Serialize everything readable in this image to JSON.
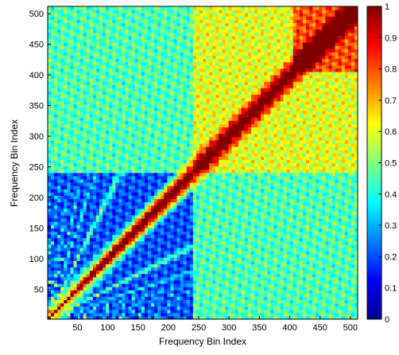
{
  "chart_data": {
    "type": "heatmap",
    "title": "",
    "xlabel": "Frequency Bin Index",
    "ylabel": "Frequency Bin Index",
    "xlim": [
      1,
      512
    ],
    "ylim": [
      1,
      512
    ],
    "x_ticks": [
      50,
      100,
      150,
      200,
      250,
      300,
      350,
      400,
      450,
      500
    ],
    "y_ticks": [
      50,
      100,
      150,
      200,
      250,
      300,
      350,
      400,
      450,
      500
    ],
    "colorbar": {
      "range": [
        0,
        1
      ],
      "ticks": [
        {
          "value": 0,
          "label": "0"
        },
        {
          "value": 0.1,
          "label": "0.1"
        },
        {
          "value": 0.2,
          "label": "0.2"
        },
        {
          "value": 0.3,
          "label": "0.3"
        },
        {
          "value": 0.4,
          "label": "0.4"
        },
        {
          "value": 0.5,
          "label": "0.5"
        },
        {
          "value": 0.6,
          "label": "0.6"
        },
        {
          "value": 0.7,
          "label": "0.7"
        },
        {
          "value": 0.8,
          "label": "0.8"
        },
        {
          "value": 0.9,
          "label": "0.9"
        },
        {
          "value": 1,
          "label": "1"
        }
      ],
      "colormap": "jet"
    },
    "matrix_description_values": {
      "diagonal": 1.0,
      "low_block_background": 0.2,
      "mid_block_background": 0.45,
      "upper_block_background": 0.6,
      "top_right_block": 0.8,
      "harmonic_ridge_peak": 0.65,
      "block_boundaries": [
        240,
        405
      ]
    },
    "grid": false,
    "legend": "colorbar-right"
  }
}
